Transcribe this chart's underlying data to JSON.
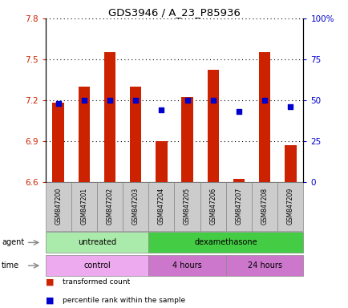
{
  "title": "GDS3946 / A_23_P85936",
  "samples": [
    "GSM847200",
    "GSM847201",
    "GSM847202",
    "GSM847203",
    "GSM847204",
    "GSM847205",
    "GSM847206",
    "GSM847207",
    "GSM847208",
    "GSM847209"
  ],
  "transformed_count": [
    7.18,
    7.3,
    7.55,
    7.3,
    6.9,
    7.22,
    7.42,
    6.62,
    7.55,
    6.87
  ],
  "percentile_rank": [
    48,
    50,
    50,
    50,
    44,
    50,
    50,
    43,
    50,
    46
  ],
  "ylim_left": [
    6.6,
    7.8
  ],
  "ylim_right": [
    0,
    100
  ],
  "yticks_left": [
    6.6,
    6.9,
    7.2,
    7.5,
    7.8
  ],
  "yticks_right": [
    0,
    25,
    50,
    75,
    100
  ],
  "ytick_labels_left": [
    "6.6",
    "6.9",
    "7.2",
    "7.5",
    "7.8"
  ],
  "ytick_labels_right": [
    "0",
    "25",
    "50",
    "75",
    "100%"
  ],
  "bar_color": "#cc2200",
  "dot_color": "#0000cc",
  "agent_groups": [
    {
      "label": "untreated",
      "start": 0,
      "end": 4,
      "color": "#aaeaaa"
    },
    {
      "label": "dexamethasone",
      "start": 4,
      "end": 10,
      "color": "#44cc44"
    }
  ],
  "time_groups": [
    {
      "label": "control",
      "start": 0,
      "end": 4,
      "color": "#eeaaee"
    },
    {
      "label": "4 hours",
      "start": 4,
      "end": 7,
      "color": "#cc77cc"
    },
    {
      "label": "24 hours",
      "start": 7,
      "end": 10,
      "color": "#cc77cc"
    }
  ],
  "legend_items": [
    {
      "label": "transformed count",
      "color": "#cc2200"
    },
    {
      "label": "percentile rank within the sample",
      "color": "#0000cc"
    }
  ],
  "bar_width": 0.45,
  "background_color": "#ffffff",
  "tick_label_color_left": "#cc2200",
  "tick_label_color_right": "#0000cc"
}
